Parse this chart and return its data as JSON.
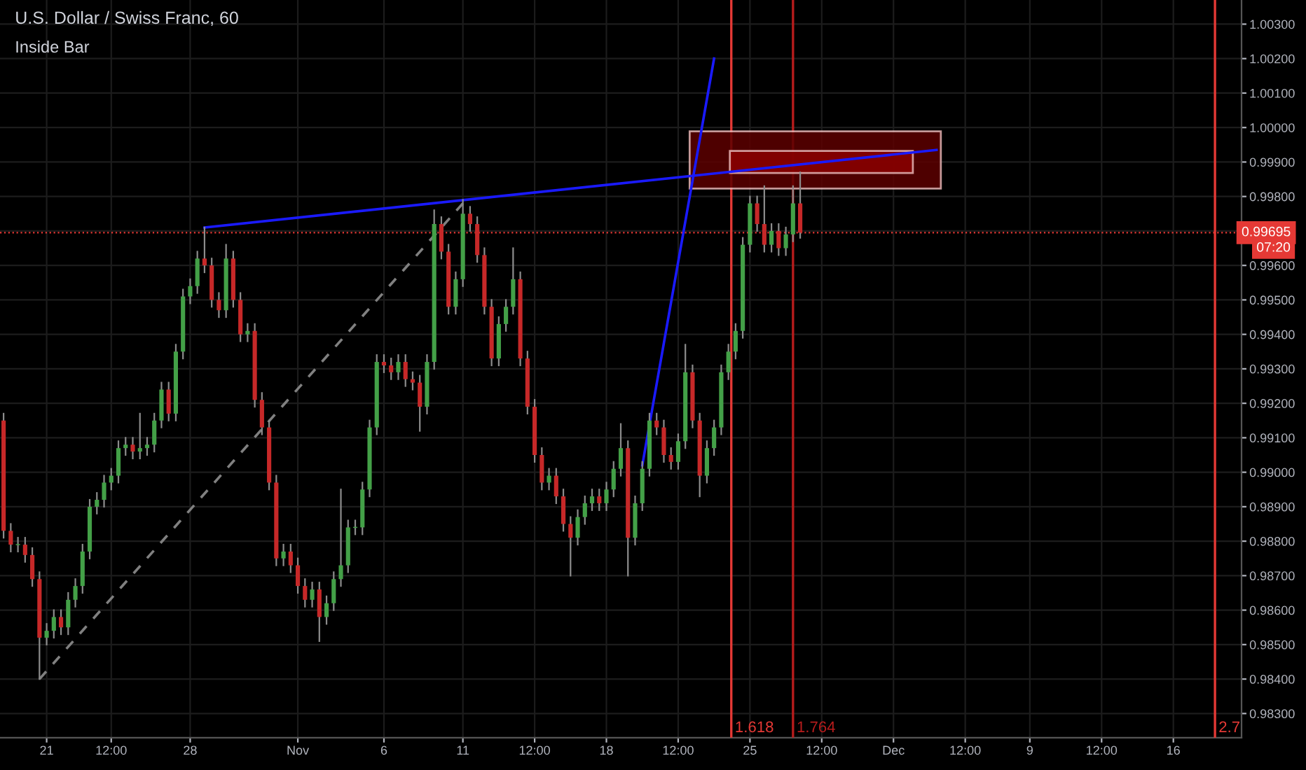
{
  "chart_data": {
    "type": "candlestick",
    "title": "U.S. Dollar / Swiss Franc, 60",
    "subtitle": "Inside Bar",
    "categories": [
      null,
      null,
      null,
      null,
      null,
      null,
      "21",
      null,
      null,
      null,
      null,
      null,
      null,
      null,
      null,
      "12:00",
      null,
      null,
      null,
      null,
      null,
      null,
      null,
      null,
      null,
      null,
      "28",
      null,
      null,
      null,
      null,
      null,
      null,
      null,
      null,
      null,
      null,
      null,
      null,
      null,
      null,
      "Nov",
      null,
      null,
      null,
      null,
      null,
      null,
      null,
      null,
      null,
      null,
      null,
      "6",
      null,
      null,
      null,
      null,
      null,
      null,
      null,
      null,
      null,
      null,
      "11",
      null,
      null,
      null,
      null,
      null,
      null,
      null,
      null,
      null,
      "12:00",
      null,
      null,
      null,
      null,
      null,
      null,
      null,
      null,
      null,
      "18",
      null,
      null,
      null,
      null,
      null,
      null,
      null,
      null,
      null,
      "12:00",
      null,
      null,
      null,
      null,
      null,
      null,
      null,
      null,
      null,
      "25",
      null,
      null,
      null,
      null,
      null,
      null,
      null,
      null,
      null,
      "12:00",
      null,
      null,
      null,
      null,
      null,
      null,
      null,
      null,
      null,
      "Dec",
      null,
      null,
      null,
      null,
      null,
      null,
      null,
      null,
      null,
      "12:00",
      null,
      null,
      null,
      null,
      null,
      null,
      null,
      null,
      "9",
      null,
      null,
      null,
      null,
      null,
      null,
      null,
      null,
      null,
      "12:00",
      null,
      null,
      null,
      null,
      null,
      null,
      null,
      null,
      null,
      "16",
      null,
      null,
      null,
      null,
      null,
      null,
      null,
      null,
      null
    ],
    "ohlc": [
      [
        0.9915,
        0.9917,
        0.9881,
        0.9883
      ],
      [
        0.9883,
        0.9885,
        0.9877,
        0.9879
      ],
      [
        0.9879,
        0.9881,
        0.9877,
        0.9879
      ],
      [
        0.9879,
        0.9881,
        0.9874,
        0.9876
      ],
      [
        0.9876,
        0.9878,
        0.9867,
        0.9869
      ],
      [
        0.9869,
        0.9871,
        0.984,
        0.9852
      ],
      [
        0.9852,
        0.9856,
        0.985,
        0.9854
      ],
      [
        0.9854,
        0.986,
        0.9852,
        0.9858
      ],
      [
        0.9858,
        0.986,
        0.9853,
        0.9855
      ],
      [
        0.9855,
        0.9865,
        0.9853,
        0.9863
      ],
      [
        0.9863,
        0.9869,
        0.9861,
        0.9867
      ],
      [
        0.9867,
        0.9879,
        0.9865,
        0.9877
      ],
      [
        0.9877,
        0.9892,
        0.9875,
        0.989
      ],
      [
        0.989,
        0.9894,
        0.9888,
        0.9892
      ],
      [
        0.9892,
        0.9899,
        0.989,
        0.9897
      ],
      [
        0.9897,
        0.9901,
        0.9895,
        0.9899
      ],
      [
        0.9899,
        0.9909,
        0.9897,
        0.9907
      ],
      [
        0.9907,
        0.991,
        0.9905,
        0.9908
      ],
      [
        0.9908,
        0.991,
        0.9904,
        0.9906
      ],
      [
        0.9906,
        0.9917,
        0.9904,
        0.9907
      ],
      [
        0.9907,
        0.991,
        0.9905,
        0.9908
      ],
      [
        0.9908,
        0.9917,
        0.9906,
        0.9915
      ],
      [
        0.9915,
        0.9926,
        0.9913,
        0.9924
      ],
      [
        0.9924,
        0.9926,
        0.9915,
        0.9917
      ],
      [
        0.9917,
        0.9937,
        0.9915,
        0.9935
      ],
      [
        0.9935,
        0.9953,
        0.9933,
        0.9951
      ],
      [
        0.9951,
        0.9956,
        0.9949,
        0.9954
      ],
      [
        0.9954,
        0.9964,
        0.9952,
        0.9962
      ],
      [
        0.9962,
        0.9971,
        0.9958,
        0.996
      ],
      [
        0.996,
        0.9962,
        0.9948,
        0.995
      ],
      [
        0.995,
        0.9952,
        0.9945,
        0.9947
      ],
      [
        0.9947,
        0.9966,
        0.9945,
        0.9962
      ],
      [
        0.9962,
        0.9964,
        0.9948,
        0.995
      ],
      [
        0.995,
        0.9952,
        0.9938,
        0.994
      ],
      [
        0.994,
        0.9943,
        0.9938,
        0.9941
      ],
      [
        0.9941,
        0.9943,
        0.9919,
        0.9921
      ],
      [
        0.9921,
        0.9923,
        0.9911,
        0.9913
      ],
      [
        0.9913,
        0.9915,
        0.9895,
        0.9897
      ],
      [
        0.9897,
        0.9899,
        0.9873,
        0.9875
      ],
      [
        0.9875,
        0.9879,
        0.9873,
        0.9877
      ],
      [
        0.9877,
        0.9879,
        0.9871,
        0.9873
      ],
      [
        0.9873,
        0.9875,
        0.9865,
        0.9867
      ],
      [
        0.9867,
        0.9869,
        0.9861,
        0.9863
      ],
      [
        0.9863,
        0.9868,
        0.9861,
        0.9866
      ],
      [
        0.9866,
        0.9868,
        0.9851,
        0.9858
      ],
      [
        0.9858,
        0.9864,
        0.9856,
        0.9862
      ],
      [
        0.9862,
        0.9871,
        0.986,
        0.9869
      ],
      [
        0.9869,
        0.9895,
        0.9867,
        0.9873
      ],
      [
        0.9873,
        0.9886,
        0.9871,
        0.9884
      ],
      [
        0.9884,
        0.9886,
        0.9882,
        0.9884
      ],
      [
        0.9884,
        0.9897,
        0.9882,
        0.9895
      ],
      [
        0.9895,
        0.9915,
        0.9893,
        0.9913
      ],
      [
        0.9913,
        0.9934,
        0.9911,
        0.9932
      ],
      [
        0.9932,
        0.9934,
        0.9929,
        0.9931
      ],
      [
        0.9931,
        0.9933,
        0.9927,
        0.9929
      ],
      [
        0.9929,
        0.9934,
        0.9927,
        0.9932
      ],
      [
        0.9932,
        0.9934,
        0.9925,
        0.9927
      ],
      [
        0.9927,
        0.9929,
        0.9924,
        0.9926
      ],
      [
        0.9926,
        0.9928,
        0.9912,
        0.9919
      ],
      [
        0.9919,
        0.9934,
        0.9917,
        0.9932
      ],
      [
        0.9932,
        0.9976,
        0.993,
        0.9972
      ],
      [
        0.9972,
        0.9974,
        0.9962,
        0.9964
      ],
      [
        0.9964,
        0.9966,
        0.9946,
        0.9948
      ],
      [
        0.9948,
        0.9958,
        0.9946,
        0.9956
      ],
      [
        0.9956,
        0.9979,
        0.9954,
        0.9975
      ],
      [
        0.9975,
        0.9977,
        0.997,
        0.9972
      ],
      [
        0.9972,
        0.9974,
        0.9961,
        0.9963
      ],
      [
        0.9963,
        0.9965,
        0.9946,
        0.9948
      ],
      [
        0.9948,
        0.995,
        0.9931,
        0.9933
      ],
      [
        0.9933,
        0.9945,
        0.9931,
        0.9943
      ],
      [
        0.9943,
        0.995,
        0.9941,
        0.9948
      ],
      [
        0.9948,
        0.9965,
        0.9946,
        0.9956
      ],
      [
        0.9956,
        0.9958,
        0.9931,
        0.9933
      ],
      [
        0.9933,
        0.9935,
        0.9917,
        0.9919
      ],
      [
        0.9919,
        0.9921,
        0.9903,
        0.9905
      ],
      [
        0.9905,
        0.9907,
        0.9895,
        0.9897
      ],
      [
        0.9897,
        0.9901,
        0.9895,
        0.9899
      ],
      [
        0.9899,
        0.9901,
        0.9891,
        0.9893
      ],
      [
        0.9893,
        0.9895,
        0.9883,
        0.9885
      ],
      [
        0.9885,
        0.9887,
        0.987,
        0.9881
      ],
      [
        0.9881,
        0.9889,
        0.9879,
        0.9887
      ],
      [
        0.9887,
        0.9893,
        0.9885,
        0.9891
      ],
      [
        0.9891,
        0.9895,
        0.9889,
        0.9893
      ],
      [
        0.9893,
        0.9895,
        0.9889,
        0.9891
      ],
      [
        0.9891,
        0.9897,
        0.9889,
        0.9895
      ],
      [
        0.9895,
        0.9903,
        0.9893,
        0.9901
      ],
      [
        0.9901,
        0.9914,
        0.9899,
        0.9907
      ],
      [
        0.9907,
        0.9909,
        0.987,
        0.9881
      ],
      [
        0.9881,
        0.9893,
        0.9879,
        0.9891
      ],
      [
        0.9891,
        0.9903,
        0.9889,
        0.9901
      ],
      [
        0.9901,
        0.9917,
        0.9899,
        0.9915
      ],
      [
        0.9915,
        0.9917,
        0.9911,
        0.9913
      ],
      [
        0.9913,
        0.9915,
        0.9903,
        0.9905
      ],
      [
        0.9905,
        0.9907,
        0.9901,
        0.9903
      ],
      [
        0.9903,
        0.9911,
        0.9901,
        0.9909
      ],
      [
        0.9909,
        0.9937,
        0.9907,
        0.9929
      ],
      [
        0.9929,
        0.9931,
        0.9913,
        0.9915
      ],
      [
        0.9915,
        0.9917,
        0.9893,
        0.9899
      ],
      [
        0.9899,
        0.9909,
        0.9897,
        0.9907
      ],
      [
        0.9907,
        0.9915,
        0.9905,
        0.9913
      ],
      [
        0.9913,
        0.9931,
        0.9911,
        0.9929
      ],
      [
        0.9929,
        0.9937,
        0.9927,
        0.9935
      ],
      [
        0.9935,
        0.9943,
        0.9933,
        0.9941
      ],
      [
        0.9941,
        0.9968,
        0.9939,
        0.9966
      ],
      [
        0.9966,
        0.998,
        0.9964,
        0.9978
      ],
      [
        0.9978,
        0.998,
        0.997,
        0.9972
      ],
      [
        0.9972,
        0.9983,
        0.9964,
        0.9966
      ],
      [
        0.9966,
        0.9972,
        0.9964,
        0.997
      ],
      [
        0.997,
        0.9972,
        0.9963,
        0.9965
      ],
      [
        0.9965,
        0.9971,
        0.9963,
        0.9969
      ],
      [
        0.9969,
        0.9983,
        0.9967,
        0.9978
      ],
      [
        0.9978,
        0.9987,
        0.9968,
        0.99695
      ],
      null,
      null,
      null,
      null,
      null,
      null,
      null,
      null,
      null,
      null,
      null,
      null,
      null,
      null,
      null,
      null,
      null,
      null,
      null,
      null,
      null,
      null,
      null,
      null,
      null,
      null,
      null,
      null,
      null,
      null,
      null,
      null,
      null,
      null,
      null,
      null,
      null,
      null,
      null,
      null,
      null,
      null,
      null,
      null,
      null,
      null,
      null,
      null,
      null,
      null,
      null,
      null,
      null,
      null,
      null,
      null,
      null,
      null,
      null,
      null,
      null
    ],
    "series": [
      {
        "type": "line",
        "color": "#1a1aff",
        "values": [
          null,
          null,
          null,
          null,
          null,
          null,
          null,
          null,
          null,
          null,
          null,
          null,
          null,
          null,
          null,
          null,
          null,
          null,
          null,
          null,
          null,
          null,
          null,
          null,
          null,
          null,
          null,
          null,
          0.9971,
          null,
          null,
          null,
          null,
          null,
          null,
          null,
          null,
          null,
          null,
          null,
          null,
          null,
          null,
          null,
          null,
          null,
          null,
          null,
          null,
          null,
          null,
          null,
          null,
          null,
          null,
          null,
          null,
          null,
          null,
          null,
          null,
          null,
          null,
          null,
          null,
          null,
          null,
          null,
          null,
          null,
          null,
          null,
          null,
          null,
          null,
          null,
          null,
          null,
          null,
          null,
          null,
          null,
          null,
          null,
          null,
          null,
          null,
          null,
          null,
          null,
          null,
          null,
          null,
          null,
          null,
          null,
          null,
          null,
          null,
          null,
          null,
          null,
          null,
          null,
          null,
          null,
          null,
          null,
          null,
          null,
          null,
          null,
          null,
          null,
          null,
          null,
          null,
          null,
          null,
          null,
          null,
          null,
          null,
          null,
          null,
          null,
          null,
          null,
          null,
          null,
          0.99935,
          null,
          null,
          null,
          null,
          null,
          null,
          null,
          null,
          null,
          null,
          null,
          null,
          null,
          null,
          null,
          null,
          null,
          null,
          null,
          null,
          null,
          null,
          null,
          null,
          null,
          null,
          null,
          null,
          null,
          null,
          null,
          null,
          null,
          null,
          null,
          null,
          null,
          null,
          null,
          null,
          null,
          null
        ]
      },
      {
        "type": "line",
        "color": "#1a1aff",
        "values": [
          null,
          null,
          null,
          null,
          null,
          null,
          null,
          null,
          null,
          null,
          null,
          null,
          null,
          null,
          null,
          null,
          null,
          null,
          null,
          null,
          null,
          null,
          null,
          null,
          null,
          null,
          null,
          null,
          null,
          null,
          null,
          null,
          null,
          null,
          null,
          null,
          null,
          null,
          null,
          null,
          null,
          null,
          null,
          null,
          null,
          null,
          null,
          null,
          null,
          null,
          null,
          null,
          null,
          null,
          null,
          null,
          null,
          null,
          null,
          null,
          null,
          null,
          null,
          null,
          null,
          null,
          null,
          null,
          null,
          null,
          null,
          null,
          null,
          null,
          null,
          null,
          null,
          null,
          null,
          null,
          null,
          null,
          null,
          null,
          null,
          null,
          null,
          null,
          null,
          0.9902,
          null,
          null,
          null,
          null,
          null,
          null,
          null,
          null,
          null,
          1.002,
          null,
          null,
          null,
          null,
          null,
          null,
          null,
          null,
          null,
          null,
          null,
          null,
          null,
          null,
          null,
          null,
          null,
          null,
          null,
          null,
          null,
          null,
          null,
          null,
          null,
          null,
          null,
          null,
          null,
          null,
          null,
          null,
          null,
          null,
          null,
          null,
          null,
          null,
          null,
          null,
          null,
          null,
          null,
          null,
          null,
          null,
          null,
          null,
          null,
          null,
          null,
          null,
          null,
          null,
          null,
          null,
          null,
          null,
          null,
          null,
          null,
          null,
          null,
          null,
          null,
          null,
          null,
          null,
          null,
          null,
          null,
          null,
          null
        ]
      },
      {
        "type": "line",
        "color": "#808080",
        "line_style": "dashed",
        "values": [
          null,
          null,
          null,
          null,
          null,
          0.984,
          null,
          null,
          null,
          null,
          null,
          null,
          null,
          null,
          null,
          null,
          null,
          null,
          null,
          null,
          null,
          null,
          null,
          null,
          null,
          null,
          null,
          null,
          null,
          null,
          null,
          null,
          null,
          null,
          null,
          null,
          null,
          null,
          null,
          null,
          null,
          null,
          null,
          null,
          null,
          null,
          null,
          null,
          null,
          null,
          null,
          null,
          null,
          null,
          null,
          null,
          null,
          null,
          null,
          null,
          null,
          null,
          null,
          null,
          0.9978,
          null,
          null,
          null,
          null,
          null,
          null,
          null,
          null,
          null,
          null,
          null,
          null,
          null,
          null,
          null,
          null,
          null,
          null,
          null,
          null,
          null,
          null,
          null,
          null,
          null,
          null,
          null,
          null,
          null,
          null,
          null,
          null,
          null,
          null,
          null,
          null,
          null,
          null,
          null,
          null,
          null,
          null,
          null,
          null,
          null,
          null,
          null,
          null,
          null,
          null,
          null,
          null,
          null,
          null,
          null,
          null,
          null,
          null,
          null,
          null,
          null,
          null,
          null,
          null,
          null,
          null,
          null,
          null,
          null,
          null,
          null,
          null,
          null,
          null,
          null,
          null,
          null,
          null,
          null,
          null,
          null,
          null,
          null,
          null,
          null,
          null,
          null,
          null,
          null,
          null,
          null,
          null,
          null,
          null,
          null,
          null,
          null,
          null,
          null,
          null,
          null,
          null,
          null,
          null,
          null,
          null,
          null,
          null
        ]
      }
    ],
    "ylim": [
      0.9823,
      1.0037
    ],
    "yticks": [
      {
        "value": 0.983,
        "label": "0.98300"
      },
      {
        "value": 0.984,
        "label": "0.98400"
      },
      {
        "value": 0.985,
        "label": "0.98500"
      },
      {
        "value": 0.986,
        "label": "0.98600"
      },
      {
        "value": 0.987,
        "label": "0.98700"
      },
      {
        "value": 0.988,
        "label": "0.98800"
      },
      {
        "value": 0.989,
        "label": "0.98900"
      },
      {
        "value": 0.99,
        "label": "0.99000"
      },
      {
        "value": 0.991,
        "label": "0.99100"
      },
      {
        "value": 0.992,
        "label": "0.99200"
      },
      {
        "value": 0.993,
        "label": "0.99300"
      },
      {
        "value": 0.994,
        "label": "0.99400"
      },
      {
        "value": 0.995,
        "label": "0.99500"
      },
      {
        "value": 0.996,
        "label": "0.99600"
      },
      {
        "value": 0.997,
        "label": null
      },
      {
        "value": 0.998,
        "label": "0.99800"
      },
      {
        "value": 0.999,
        "label": "0.99900"
      },
      {
        "value": 1.0,
        "label": "1.00000"
      },
      {
        "value": 1.001,
        "label": "1.00100"
      },
      {
        "value": 1.002,
        "label": "1.00200"
      },
      {
        "value": 1.003,
        "label": "1.00300"
      }
    ],
    "ref_lines": [
      {
        "axis": "y",
        "value": 0.99695,
        "label": "0.99695",
        "color": "#e53935",
        "line_style": "dotted"
      }
    ],
    "annotations": [
      "07:20",
      "1.618",
      "1.764",
      "2.7"
    ],
    "grid": true
  }
}
